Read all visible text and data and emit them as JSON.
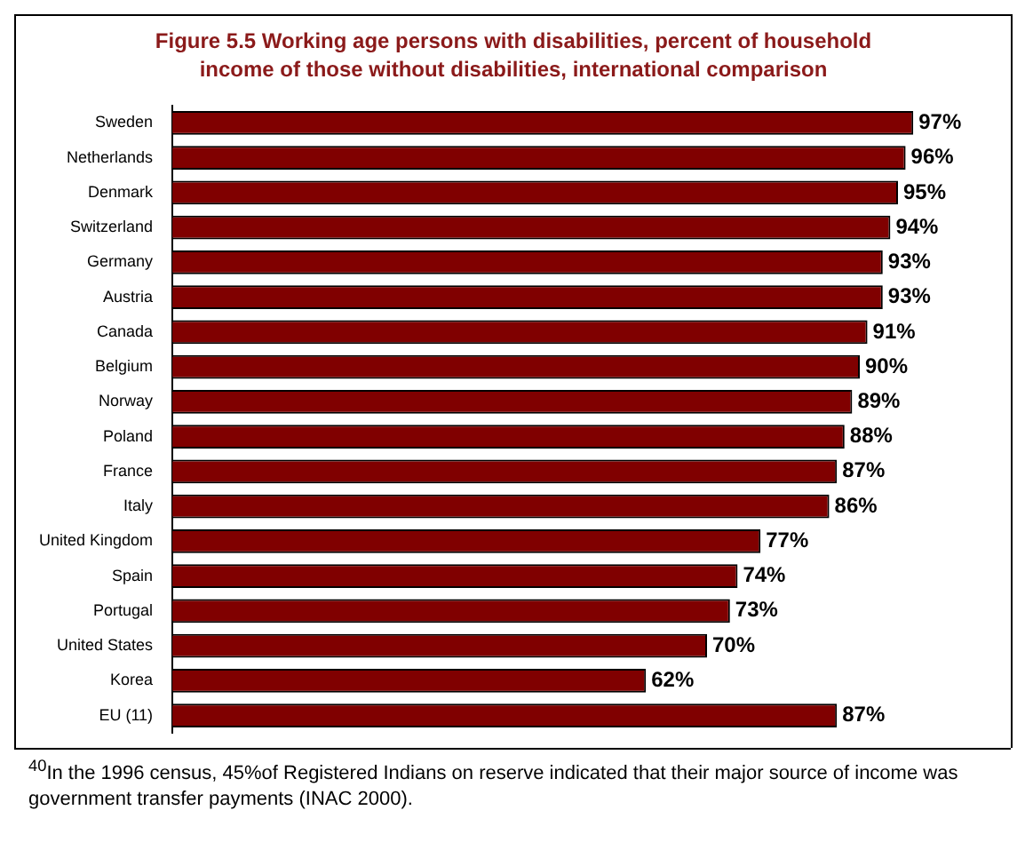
{
  "chart_data": {
    "type": "bar",
    "orientation": "horizontal",
    "title": "Figure 5.5 Working age persons with disabilities, percent of household income of those without disabilities, international comparison",
    "categories": [
      "Sweden",
      "Netherlands",
      "Denmark",
      "Switzerland",
      "Germany",
      "Austria",
      "Canada",
      "Belgium",
      "Norway",
      "Poland",
      "France",
      "Italy",
      "United Kingdom",
      "Spain",
      "Portugal",
      "United States",
      "Korea",
      "EU (11)"
    ],
    "values": [
      97,
      96,
      95,
      94,
      93,
      93,
      91,
      90,
      89,
      88,
      87,
      86,
      77,
      74,
      73,
      70,
      62,
      87
    ],
    "value_labels": [
      "97%",
      "96%",
      "95%",
      "94%",
      "93%",
      "93%",
      "91%",
      "90%",
      "89%",
      "88%",
      "87%",
      "86%",
      "77%",
      "74%",
      "73%",
      "70%",
      "62%",
      "87%"
    ],
    "color": "#800000",
    "legend": false,
    "tick_labels": "y",
    "annotations": [
      "$^{40}$In the 1996 census, 45%of Registered Indians on reserve indicated that their major source of income was government transfer payments (INAC 2000)."
    ]
  }
}
